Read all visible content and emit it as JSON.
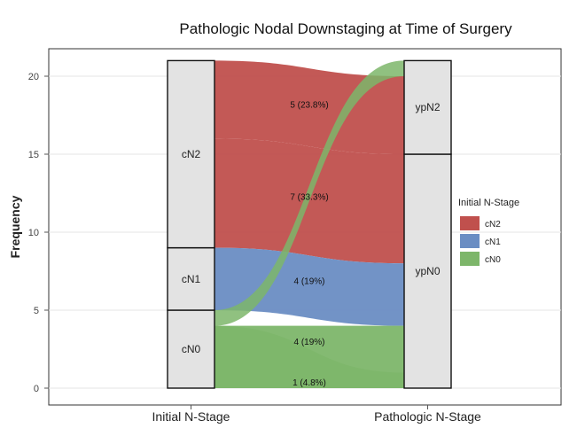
{
  "chart_data": {
    "type": "alluvial",
    "title": "Pathologic Nodal Downstaging at Time of Surgery",
    "ylabel": "Frequency",
    "xlabel": "",
    "ylim": [
      0,
      21
    ],
    "yticks": [
      0,
      5,
      10,
      15,
      20
    ],
    "axes": [
      "Initial N-Stage",
      "Pathologic N-Stage"
    ],
    "strata": {
      "initial": [
        {
          "label": "cN0",
          "value": 5
        },
        {
          "label": "cN1",
          "value": 4
        },
        {
          "label": "cN2",
          "value": 12
        }
      ],
      "pathologic": [
        {
          "label": "ypN0",
          "value": 15
        },
        {
          "label": "ypN2",
          "value": 6
        }
      ]
    },
    "flows": [
      {
        "from": "cN0",
        "to": "ypN0",
        "value": 4,
        "label": "4 (19%)"
      },
      {
        "from": "cN0",
        "to": "ypN2",
        "value": 1,
        "label": "1 (4.8%)"
      },
      {
        "from": "cN1",
        "to": "ypN0",
        "value": 4,
        "label": "4 (19%)"
      },
      {
        "from": "cN2",
        "to": "ypN0",
        "value": 7,
        "label": "7 (33.3%)"
      },
      {
        "from": "cN2",
        "to": "ypN2",
        "value": 5,
        "label": "5 (23.8%)"
      }
    ],
    "legend": {
      "title": "Initial N-Stage",
      "position": "right",
      "items": [
        {
          "label": "cN2",
          "color": "#C0504D"
        },
        {
          "label": "cN1",
          "color": "#6A8DC3"
        },
        {
          "label": "cN0",
          "color": "#7DB66A"
        }
      ]
    }
  }
}
